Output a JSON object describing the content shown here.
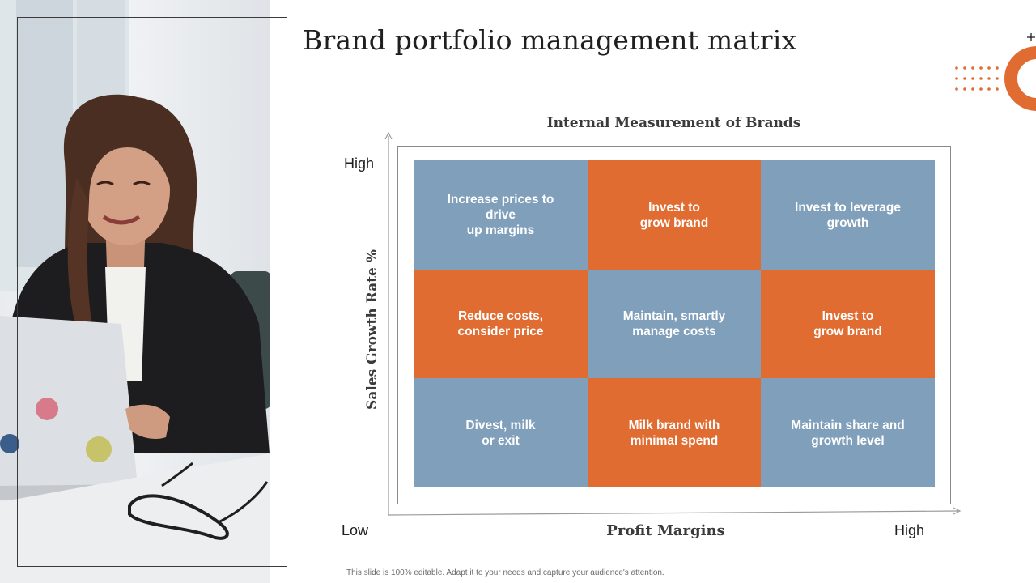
{
  "slide": {
    "title": "Brand portfolio management matrix",
    "footer": "This slide is 100% editable. Adapt it to your needs and capture your audience's attention."
  },
  "matrix": {
    "title": "Internal Measurement of Brands",
    "y_axis_label": "Sales Growth Rate %",
    "x_axis_label": "Profit Margins",
    "y_high": "High",
    "x_low": "Low",
    "x_high": "High",
    "cells": [
      {
        "text": "Increase prices to\ndrive\nup margins",
        "color": "blue"
      },
      {
        "text": "Invest to\ngrow brand",
        "color": "orange"
      },
      {
        "text": "Invest to leverage\ngrowth",
        "color": "blue"
      },
      {
        "text": "Reduce costs,\nconsider price",
        "color": "orange"
      },
      {
        "text": "Maintain, smartly\nmanage costs",
        "color": "blue"
      },
      {
        "text": "Invest to\ngrow brand",
        "color": "orange"
      },
      {
        "text": "Divest, milk\nor exit",
        "color": "blue"
      },
      {
        "text": "Milk brand with\nminimal spend",
        "color": "orange"
      },
      {
        "text": "Maintain share and\ngrowth level",
        "color": "blue"
      }
    ]
  },
  "colors": {
    "accent_orange": "#e06c31",
    "accent_blue": "#7f9fbb"
  }
}
